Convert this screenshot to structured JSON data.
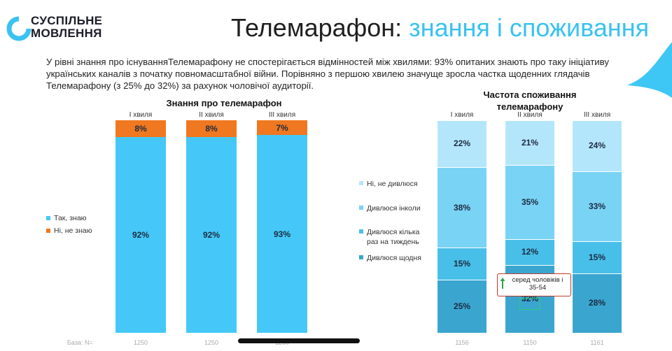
{
  "logo": {
    "line1": "СУСПІЛЬНЕ",
    "line2": "МОВЛЕННЯ"
  },
  "title": {
    "part1": "Телемарафон:",
    "part2": "знання і споживання"
  },
  "description": "У рівні знання про існуванняТелемарафону не спостерігається відмінностей між хвилями: 93% опитаних знають про таку ініціативу українських каналів з початку повномасштабної війни. Порівняно з першою хвилею значуще зросла частка щоденних глядачів Телемарафону (з 25% до 32%) за рахунок чоловічої аудиторії.",
  "base_label": "База: N=",
  "annotation": {
    "text": "серед чоловіків і 35-54"
  },
  "colors": {
    "accent": "#39c2f2",
    "orange": "#f07820",
    "corner": "#3ec6f4"
  },
  "chart_data": [
    {
      "type": "bar",
      "stacked": true,
      "title": "Знання про телемарафон",
      "categories": [
        "І хвиля",
        "ІІ хвиля",
        "ІІІ хвиля"
      ],
      "series": [
        {
          "name": "Так, знаю",
          "color": "#45c8f7",
          "values": [
            92,
            92,
            93
          ],
          "labels": [
            "92%",
            "92%",
            "93%"
          ]
        },
        {
          "name": "Ні, не знаю",
          "color": "#f07820",
          "values": [
            8,
            8,
            7
          ],
          "labels": [
            "8%",
            "8%",
            "7%"
          ]
        }
      ],
      "base": [
        "1250",
        "1250",
        "1250"
      ],
      "legend": "left"
    },
    {
      "type": "bar",
      "stacked": true,
      "title": "Частота споживання телемарафону",
      "categories": [
        "І хвиля",
        "ІІ хвиля",
        "ІІІ хвиля"
      ],
      "series": [
        {
          "name": "Дивлюся щодня",
          "color": "#3aa6d0",
          "values": [
            25,
            32,
            28
          ],
          "labels": [
            "25%",
            "32%",
            "28%"
          ]
        },
        {
          "name": "Дивлюся кілька раз на тиждень",
          "color": "#48bfe8",
          "values": [
            15,
            12,
            15
          ],
          "labels": [
            "15%",
            "12%",
            "15%"
          ]
        },
        {
          "name": "Дивлюся інколи",
          "color": "#79d3f5",
          "values": [
            38,
            35,
            33
          ],
          "labels": [
            "38%",
            "35%",
            "33%"
          ]
        },
        {
          "name": "Ні, не дивлюся",
          "color": "#b4e6fb",
          "values": [
            22,
            21,
            24
          ],
          "labels": [
            "22%",
            "21%",
            "24%"
          ]
        }
      ],
      "legend_order": [
        "Ні, не дивлюся",
        "Дивлюся інколи",
        "Дивлюся кілька раз на тиждень",
        "Дивлюся щодня"
      ],
      "base": [
        "1156",
        "1150",
        "1161"
      ],
      "legend": "left"
    }
  ]
}
